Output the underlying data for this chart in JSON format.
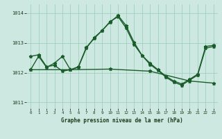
{
  "xlabel": "Graphe pression niveau de la mer (hPa)",
  "background_color": "#cce8e0",
  "grid_color": "#99ccbb",
  "line_color": "#1a5c2a",
  "ylim": [
    1010.8,
    1014.3
  ],
  "xlim": [
    -0.5,
    23.5
  ],
  "yticks": [
    1011,
    1012,
    1013,
    1014
  ],
  "xtick_labels": [
    "0",
    "1",
    "2",
    "3",
    "4",
    "5",
    "6",
    "7",
    "8",
    "9",
    "10",
    "11",
    "12",
    "13",
    "14",
    "15",
    "16",
    "17",
    "18",
    "19",
    "20",
    "21",
    "22",
    "23"
  ],
  "line1_x": [
    0,
    1,
    2,
    3,
    4,
    5,
    6,
    7,
    8,
    9,
    10,
    11,
    12,
    13,
    14,
    15,
    16,
    17,
    18,
    19,
    20,
    21,
    22,
    23
  ],
  "line1_y": [
    1012.55,
    1012.6,
    1012.2,
    1012.25,
    1012.05,
    1012.1,
    1012.2,
    1012.85,
    1013.15,
    1013.42,
    1013.7,
    1013.92,
    1013.58,
    1013.02,
    1012.58,
    1012.32,
    1012.1,
    1011.88,
    1011.72,
    1011.62,
    1011.78,
    1011.95,
    1012.88,
    1012.92
  ],
  "line2_x": [
    0,
    1,
    2,
    3,
    4,
    5,
    6,
    7,
    8,
    9,
    10,
    11,
    12,
    13,
    14,
    15,
    16,
    17,
    18,
    19,
    20,
    21,
    22,
    23
  ],
  "line2_y": [
    1012.1,
    1012.55,
    1012.18,
    1012.32,
    1012.55,
    1012.1,
    1012.18,
    1012.82,
    1013.18,
    1013.42,
    1013.72,
    1013.88,
    1013.5,
    1012.95,
    1012.58,
    1012.28,
    1012.08,
    1011.85,
    1011.68,
    1011.58,
    1011.75,
    1011.92,
    1012.82,
    1012.88
  ],
  "line3_x": [
    0,
    5,
    10,
    15,
    20,
    23
  ],
  "line3_y": [
    1012.1,
    1012.1,
    1012.12,
    1012.05,
    1011.72,
    1011.65
  ]
}
